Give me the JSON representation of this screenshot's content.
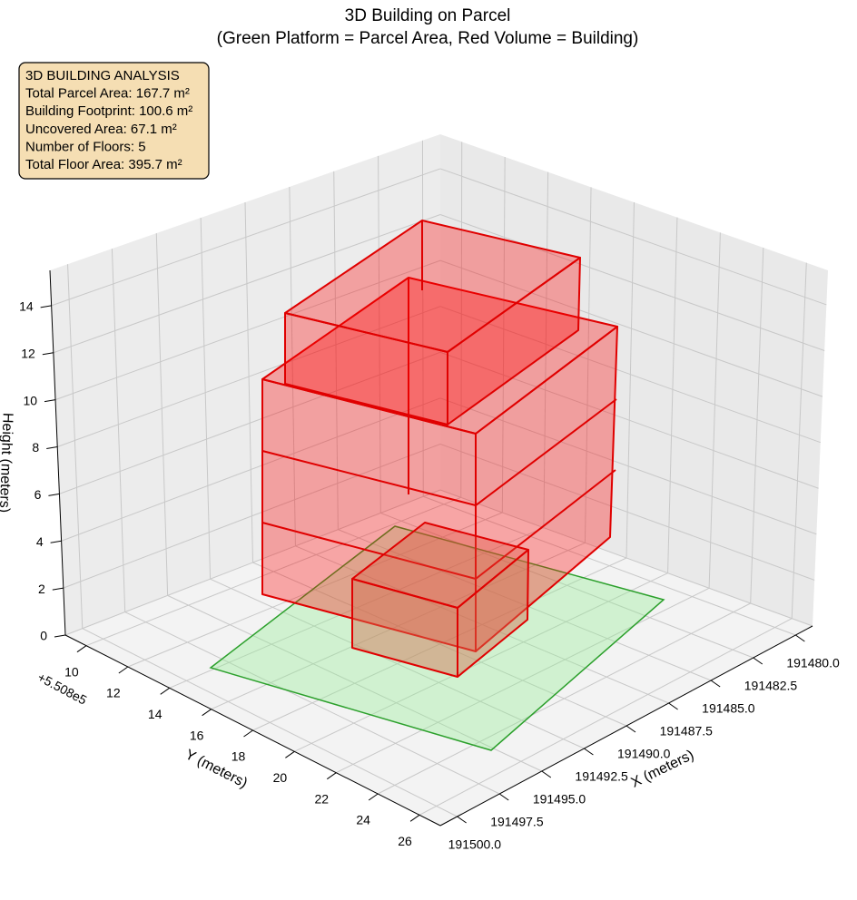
{
  "chart_data": {
    "type": "bar3d",
    "title": "3D Building on Parcel",
    "subtitle": "(Green Platform = Parcel Area, Red Volume = Building)",
    "annotation": [
      "3D BUILDING ANALYSIS",
      "Total Parcel Area: 167.7 m²",
      "Building Footprint: 100.6 m²",
      "Uncovered Area: 67.1 m²",
      "Number of Floors: 5",
      "Total Floor Area: 395.7 m²"
    ],
    "xlabel": "X (meters)",
    "ylabel": "Y (meters)",
    "zlabel": "Height (meters)",
    "y_offset": "+5.508e5",
    "xlim": [
      191479,
      191501
    ],
    "xticks": [
      {
        "value": 191480,
        "label": "191480.0"
      },
      {
        "value": 191482.5,
        "label": "191482.5"
      },
      {
        "value": 191485,
        "label": "191485.0"
      },
      {
        "value": 191487.5,
        "label": "191487.5"
      },
      {
        "value": 191490,
        "label": "191490.0"
      },
      {
        "value": 191492.5,
        "label": "191492.5"
      },
      {
        "value": 191495,
        "label": "191495.0"
      },
      {
        "value": 191497.5,
        "label": "191497.5"
      },
      {
        "value": 191500,
        "label": "191500.0"
      }
    ],
    "ylim": [
      9,
      27
    ],
    "yticks": [
      10,
      12,
      14,
      16,
      18,
      20,
      22,
      24,
      26
    ],
    "zlim": [
      0,
      15.5
    ],
    "zticks": [
      0,
      2,
      4,
      6,
      8,
      10,
      12,
      14
    ],
    "grid": true
  }
}
